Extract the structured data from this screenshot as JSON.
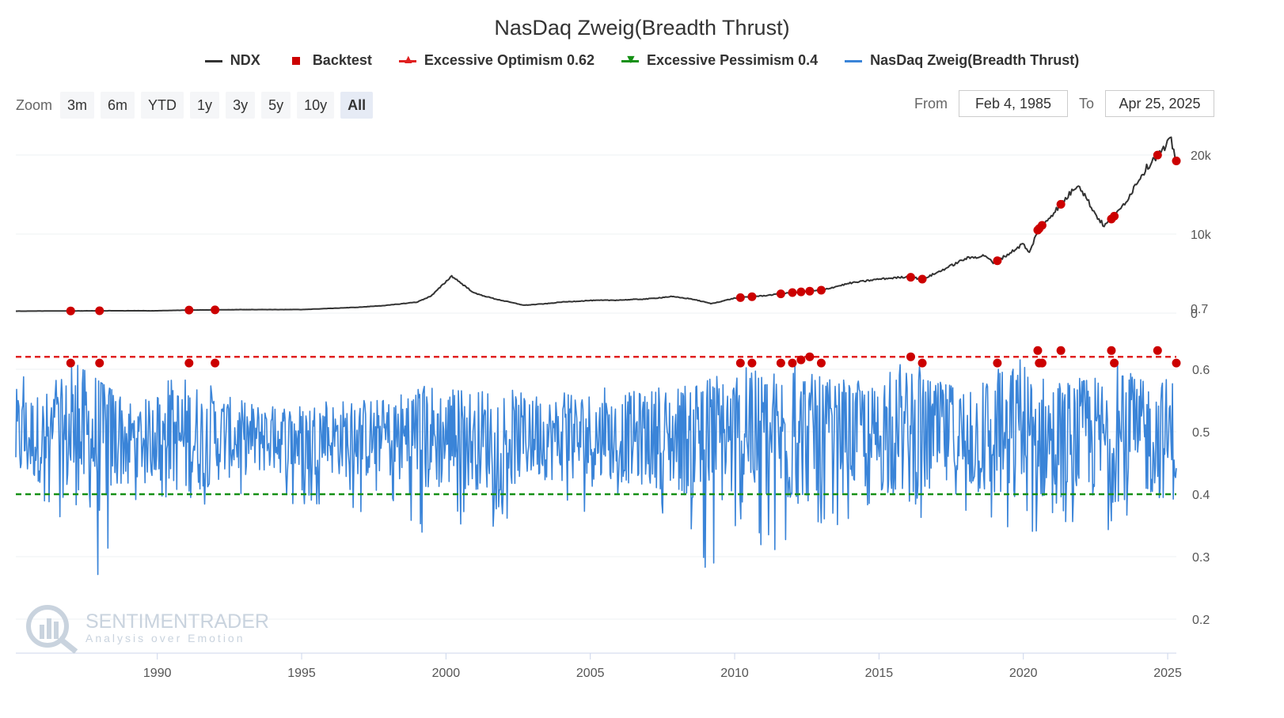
{
  "chart_title": "NasDaq Zweig(Breadth Thrust)",
  "legend": [
    {
      "label": "NDX",
      "symbol": "line",
      "color": "#333333"
    },
    {
      "label": "Backtest",
      "symbol": "square",
      "color": "#cc0000"
    },
    {
      "label": "Excessive Optimism 0.62",
      "symbol": "triangle-up",
      "color": "#e02020"
    },
    {
      "label": "Excessive Pessimism 0.4",
      "symbol": "triangle-down",
      "color": "#159015"
    },
    {
      "label": "NasDaq Zweig(Breadth Thrust)",
      "symbol": "line",
      "color": "#3a84d8"
    }
  ],
  "toolbar": {
    "zoom_label": "Zoom",
    "zoom_buttons": [
      "3m",
      "6m",
      "YTD",
      "1y",
      "3y",
      "5y",
      "10y",
      "All"
    ],
    "active": "All",
    "from_label": "From",
    "from_value": "Feb 4, 1985",
    "to_label": "To",
    "to_value": "Apr 25, 2025"
  },
  "watermark": {
    "name": "SENTIMENTRADER",
    "tagline": "Analysis over Emotion"
  },
  "chart_data": [
    {
      "type": "line",
      "name": "NDX",
      "color": "#333333",
      "x": [
        1985.1,
        1987.0,
        1988.0,
        1990.0,
        1991.0,
        1993.0,
        1995.0,
        1996.0,
        1997.0,
        1998.0,
        1999.0,
        1999.5,
        2000.2,
        2000.7,
        2001.0,
        2001.7,
        2002.7,
        2003.5,
        2004.0,
        2005.0,
        2006.0,
        2007.0,
        2007.8,
        2008.5,
        2009.2,
        2010.0,
        2011.0,
        2012.0,
        2013.0,
        2014.0,
        2015.0,
        2016.0,
        2016.5,
        2017.0,
        2018.0,
        2018.7,
        2018.95,
        2019.5,
        2020.0,
        2020.2,
        2020.5,
        2020.9,
        2021.5,
        2021.9,
        2022.5,
        2022.8,
        2023.3,
        2023.7,
        2024.0,
        2024.5,
        2024.9,
        2025.1,
        2025.25,
        2025.35,
        2025.3
      ],
      "y": [
        250,
        280,
        300,
        300,
        380,
        450,
        450,
        600,
        750,
        1000,
        1400,
        2200,
        4700,
        3300,
        2500,
        1800,
        1000,
        1200,
        1400,
        1600,
        1650,
        1800,
        2100,
        1800,
        1200,
        1900,
        2200,
        2600,
        2900,
        3800,
        4300,
        4600,
        4300,
        5100,
        6900,
        7300,
        6300,
        7500,
        8800,
        7500,
        10500,
        12100,
        14600,
        16400,
        12500,
        11000,
        12800,
        15000,
        17000,
        19500,
        20800,
        22000,
        20000,
        18500,
        19500
      ],
      "ylim": [
        0,
        23000
      ],
      "y_ticks": [
        "20k",
        "10k",
        "0.7",
        "0"
      ]
    },
    {
      "type": "line",
      "name": "NasDaq Zweig(Breadth Thrust)",
      "color": "#3a84d8",
      "x_range": [
        1985.1,
        2025.3
      ],
      "ylim": [
        0.2,
        0.64
      ],
      "y_ticks": [
        "0.6",
        "0.5",
        "0.4",
        "0.3",
        "0.2"
      ],
      "x_ticks": [
        "1990",
        "1995",
        "2000",
        "2005",
        "2010",
        "2015",
        "2020",
        "2025"
      ],
      "x_tick_values": [
        1990,
        1995,
        2000,
        2005,
        2010,
        2015,
        2020,
        2025
      ],
      "thresholds": [
        {
          "name": "Excessive Optimism",
          "value": 0.62,
          "color": "#e02020"
        },
        {
          "name": "Excessive Pessimism",
          "value": 0.4,
          "color": "#159015"
        }
      ],
      "envelope_x": [
        1985.1,
        1986.0,
        1987.0,
        1988.0,
        1989.0,
        1990.0,
        1991.0,
        1992.0,
        1993.0,
        1994.0,
        1995.0,
        1996.0,
        1997.0,
        1998.0,
        1999.0,
        2000.0,
        2001.0,
        2002.0,
        2003.0,
        2004.0,
        2005.0,
        2006.0,
        2007.0,
        2008.0,
        2009.0,
        2010.0,
        2011.0,
        2012.0,
        2013.0,
        2014.0,
        2015.0,
        2016.0,
        2017.0,
        2018.0,
        2019.0,
        2020.0,
        2021.0,
        2022.0,
        2023.0,
        2024.0,
        2025.3
      ],
      "envelope_high": [
        0.62,
        0.56,
        0.62,
        0.58,
        0.55,
        0.56,
        0.62,
        0.57,
        0.55,
        0.54,
        0.54,
        0.55,
        0.55,
        0.55,
        0.57,
        0.58,
        0.56,
        0.58,
        0.56,
        0.57,
        0.58,
        0.56,
        0.57,
        0.57,
        0.58,
        0.61,
        0.6,
        0.61,
        0.6,
        0.59,
        0.58,
        0.62,
        0.59,
        0.58,
        0.61,
        0.62,
        0.61,
        0.59,
        0.62,
        0.6,
        0.61
      ],
      "envelope_low": [
        0.41,
        0.37,
        0.34,
        0.25,
        0.38,
        0.4,
        0.35,
        0.38,
        0.39,
        0.39,
        0.37,
        0.39,
        0.37,
        0.38,
        0.31,
        0.36,
        0.34,
        0.35,
        0.39,
        0.38,
        0.37,
        0.37,
        0.36,
        0.34,
        0.27,
        0.33,
        0.31,
        0.3,
        0.34,
        0.36,
        0.35,
        0.32,
        0.35,
        0.34,
        0.33,
        0.29,
        0.36,
        0.33,
        0.34,
        0.35,
        0.34
      ]
    },
    {
      "type": "scatter",
      "name": "Backtest",
      "color": "#cc0000",
      "x": [
        1987.0,
        1988.0,
        1991.1,
        1992.0,
        2010.2,
        2010.6,
        2011.6,
        2012.0,
        2012.3,
        2012.6,
        2013.0,
        2016.1,
        2016.5,
        2019.1,
        2020.5,
        2020.55,
        2020.65,
        2021.3,
        2023.05,
        2023.15,
        2024.65,
        2025.3
      ],
      "y": [
        0.61,
        0.61,
        0.61,
        0.61,
        0.61,
        0.61,
        0.61,
        0.61,
        0.615,
        0.62,
        0.61,
        0.62,
        0.61,
        0.61,
        0.63,
        0.61,
        0.61,
        0.63,
        0.63,
        0.61,
        0.63,
        0.61
      ]
    }
  ]
}
